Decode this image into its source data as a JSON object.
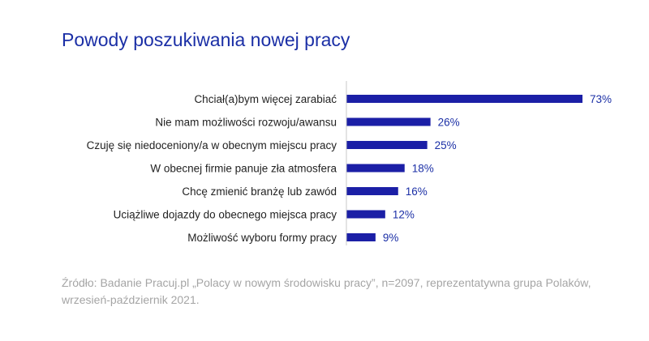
{
  "title": "Powody poszukiwania nowej pracy",
  "source": "Źródło: Badanie Pracuj.pl „Polacy w nowym środowisku pracy”, n=2097, reprezentatywna grupa Polaków, wrzesień-październik 2021.",
  "colors": {
    "bar": "#1b1fa6",
    "title": "#1b2fa6",
    "axis": "#c8c8c8"
  },
  "chart_data": {
    "type": "bar",
    "orientation": "horizontal",
    "categories": [
      "Chciał(a)bym więcej zarabiać",
      "Nie mam możliwości rozwoju/awansu",
      "Czuję się niedoceniony/a w obecnym miejscu pracy",
      "W obecnej firmie panuje zła atmosfera",
      "Chcę zmienić branżę lub zawód",
      "Uciążliwe dojazdy do obecnego miejsca pracy",
      "Możliwość wyboru formy pracy"
    ],
    "values": [
      73,
      26,
      25,
      18,
      16,
      12,
      9
    ],
    "value_labels": [
      "73%",
      "26%",
      "25%",
      "18%",
      "16%",
      "12%",
      "9%"
    ],
    "title": "Powody poszukiwania nowej pracy",
    "xlim": [
      0,
      73
    ]
  }
}
